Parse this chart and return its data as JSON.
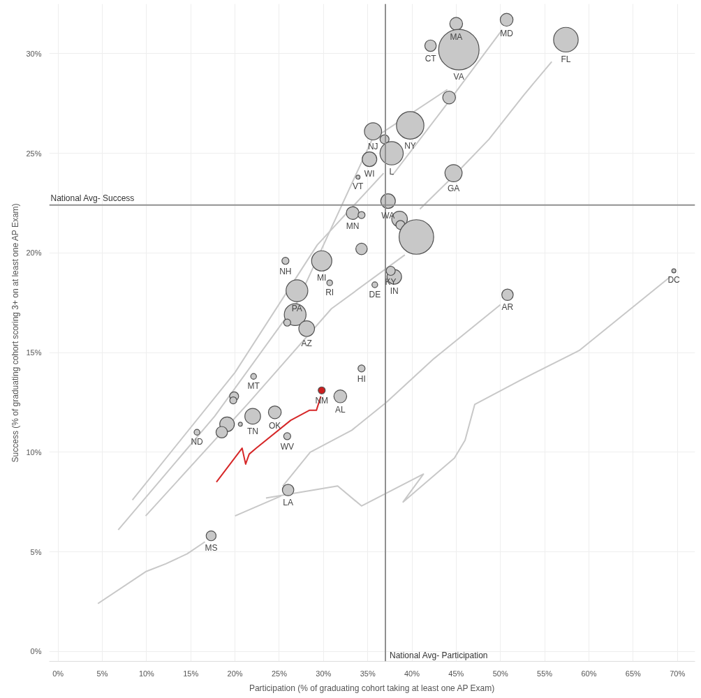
{
  "chart_data": {
    "type": "bubble",
    "xlabel": "Participation (% of graduating cohort taking at least one AP Exam)",
    "ylabel": "Success (% of graduating cohort scoring 3+ on at least one AP Exam)",
    "xlim": [
      -1,
      72
    ],
    "ylim": [
      -0.5,
      32.5
    ],
    "xticks": [
      {
        "value": 0,
        "label": "0%"
      },
      {
        "value": 5,
        "label": "5%"
      },
      {
        "value": 10,
        "label": "10%"
      },
      {
        "value": 15,
        "label": "15%"
      },
      {
        "value": 20,
        "label": "20%"
      },
      {
        "value": 25,
        "label": "25%"
      },
      {
        "value": 30,
        "label": "30%"
      },
      {
        "value": 35,
        "label": "35%"
      },
      {
        "value": 40,
        "label": "40%"
      },
      {
        "value": 45,
        "label": "45%"
      },
      {
        "value": 50,
        "label": "50%"
      },
      {
        "value": 55,
        "label": "55%"
      },
      {
        "value": 60,
        "label": "60%"
      },
      {
        "value": 65,
        "label": "65%"
      },
      {
        "value": 70,
        "label": "70%"
      }
    ],
    "yticks": [
      {
        "value": 0,
        "label": "0%"
      },
      {
        "value": 5,
        "label": "5%"
      },
      {
        "value": 10,
        "label": "10%"
      },
      {
        "value": 15,
        "label": "15%"
      },
      {
        "value": 20,
        "label": "20%"
      },
      {
        "value": 25,
        "label": "25%"
      },
      {
        "value": 30,
        "label": "30%"
      }
    ],
    "grid": true,
    "series": [
      {
        "type": "line",
        "color": "#c8c8c8",
        "x": [
          23.5,
          31.6,
          34.3,
          41.3,
          39.0,
          44.8,
          46.0,
          47.1,
          52.2,
          58.9,
          69.2
        ],
        "values": [
          7.7,
          8.3,
          7.3,
          8.9,
          7.5,
          9.7,
          10.6,
          12.4,
          13.6,
          15.1,
          18.8
        ]
      },
      {
        "type": "line",
        "color": "#c8c8c8",
        "x": [
          25.4,
          28.5,
          33.2,
          37.1,
          42.5,
          50.0
        ],
        "values": [
          8.3,
          10.0,
          11.1,
          12.5,
          14.7,
          17.4
        ]
      },
      {
        "type": "line",
        "color": "#c8c8c8",
        "x": [
          20.0,
          25.2
        ],
        "values": [
          6.8,
          7.8
        ]
      },
      {
        "type": "line",
        "color": "#c8c8c8",
        "x": [
          4.5,
          9.9,
          12.2,
          14.6,
          16.6
        ],
        "values": [
          2.4,
          4.0,
          4.4,
          4.9,
          5.5
        ]
      },
      {
        "type": "line",
        "color": "#c8c8c8",
        "x": [
          40.9,
          44.8,
          48.7,
          52.6,
          55.8
        ],
        "values": [
          22.2,
          23.9,
          25.7,
          27.9,
          29.6
        ]
      },
      {
        "type": "line",
        "color": "#c8c8c8",
        "x": [
          6.8,
          17.7,
          27.0,
          35.5,
          44.0
        ],
        "values": [
          6.1,
          11.8,
          17.5,
          25.7,
          28.2
        ]
      },
      {
        "type": "line",
        "color": "#c8c8c8",
        "x": [
          8.4,
          20.0,
          29.3,
          36.8
        ],
        "values": [
          7.6,
          14.0,
          20.4,
          24.0
        ]
      },
      {
        "type": "line",
        "color": "#c8c8c8",
        "x": [
          9.9,
          21.6,
          30.9,
          39.2
        ],
        "values": [
          6.8,
          12.5,
          17.2,
          19.9
        ]
      },
      {
        "type": "line",
        "color": "#c8c8c8",
        "x": [
          37.8,
          44.0,
          50.2
        ],
        "values": [
          23.9,
          27.5,
          31.2
        ]
      },
      {
        "type": "line",
        "color": "#d62728",
        "x": [
          17.9,
          20.8,
          21.2,
          21.6,
          22.4,
          26.3,
          28.4,
          29.2,
          29.7
        ],
        "values": [
          8.5,
          10.2,
          9.4,
          9.9,
          10.2,
          11.6,
          12.1,
          12.1,
          12.8
        ]
      },
      {
        "color": "#c8c8c8",
        "x": [
          45.0,
          50.7,
          45.3,
          42.1,
          57.4,
          44.2,
          39.8,
          35.6,
          36.9,
          37.7,
          35.2,
          33.9,
          44.7,
          37.3,
          33.3,
          34.3,
          38.6,
          38.7,
          40.5,
          34.3,
          25.7,
          29.8,
          38.0,
          30.7,
          35.8,
          27.0,
          50.8,
          69.6,
          26.8,
          25.9,
          28.1,
          22.1,
          34.3,
          31.9,
          19.9,
          19.8,
          24.5,
          22.0,
          20.6,
          19.1,
          18.5,
          15.7,
          25.9,
          26.0,
          17.3,
          37.6
        ],
        "values": [
          31.5,
          31.7,
          30.2,
          30.4,
          30.7,
          27.8,
          26.4,
          26.1,
          25.7,
          25.0,
          24.7,
          23.8,
          24.0,
          22.6,
          22.0,
          21.9,
          21.7,
          21.4,
          20.8,
          20.2,
          19.6,
          19.6,
          18.8,
          18.5,
          18.4,
          18.1,
          17.9,
          19.1,
          16.9,
          16.5,
          16.2,
          13.8,
          14.2,
          12.8,
          12.8,
          12.6,
          12.0,
          11.8,
          11.4,
          11.4,
          11.0,
          11.0,
          10.8,
          8.1,
          5.8,
          19.1
        ],
        "sizes": [
          0.1,
          0.1,
          1,
          0.08,
          0.37,
          0.1,
          0.46,
          0.18,
          0.05,
          0.33,
          0.13,
          0.01,
          0.18,
          0.13,
          0.1,
          0.03,
          0.15,
          0.05,
          0.73,
          0.08,
          0.03,
          0.25,
          0.13,
          0.02,
          0.02,
          0.29,
          0.08,
          0.01,
          0.29,
          0.03,
          0.15,
          0.02,
          0.03,
          0.1,
          0.05,
          0.03,
          0.1,
          0.15,
          0.01,
          0.13,
          0.08,
          0.02,
          0.03,
          0.08,
          0.06,
          0.05
        ],
        "value_labels": [
          "MA",
          "MD",
          "VA",
          "CT",
          "FL",
          null,
          "NY",
          "NJ",
          null,
          "L",
          "WI",
          "VT",
          "GA",
          "WA",
          "MN",
          null,
          null,
          null,
          null,
          null,
          "NH",
          "MI",
          "IN",
          "RI",
          "DE",
          "PA",
          "AR",
          "DC",
          null,
          null,
          "AZ",
          "MT",
          "HI",
          "AL",
          null,
          null,
          "OK",
          "TN",
          null,
          null,
          null,
          "ND",
          "WV",
          "LA",
          "MS",
          "KY"
        ]
      },
      {
        "color": "#cc1f1f",
        "x": [
          29.8
        ],
        "values": [
          13.1
        ],
        "sizes": [
          0.03
        ],
        "value_labels": [
          "NM"
        ]
      }
    ],
    "ref_lines": [
      {
        "axis": "y",
        "value": 22.4,
        "label": "National Avg- Success",
        "color": "#909090"
      },
      {
        "axis": "x",
        "value": 37.0,
        "label": "National Avg- Participation",
        "color": "#909090"
      }
    ]
  }
}
